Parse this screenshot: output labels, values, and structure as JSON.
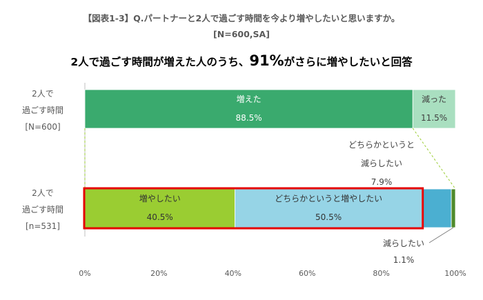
{
  "header": {
    "title": "【図表1-3】Q.パートナーと2人で過ごす時間を今より増やしたいと思いますか。",
    "sample": "[N=600,SA]",
    "headline_pre": "2人で過ごす時間が増えた人のうち、",
    "headline_big": "91%",
    "headline_post": "がさらに増やしたいと回答"
  },
  "chart_data": {
    "type": "bar",
    "orientation": "horizontal-stacked-100",
    "categories": [
      [
        "2人で",
        "過ごす時間",
        "[N=600]"
      ],
      [
        "2人で",
        "過ごす時間",
        "[n=531]"
      ]
    ],
    "bars": [
      {
        "segments": [
          {
            "label": "増えた",
            "value": 88.5,
            "display": "88.5%",
            "color": "#3aaa6e",
            "text_color": "#ffffff"
          },
          {
            "label": "減った",
            "value": 11.5,
            "display": "11.5%",
            "color": "#a9dfc0",
            "text_color": "#404040"
          }
        ]
      },
      {
        "segments": [
          {
            "label": "増やしたい",
            "value": 40.5,
            "display": "40.5%",
            "color": "#9acd32",
            "text_color": "#333333"
          },
          {
            "label": "どちらかというと増やしたい",
            "value": 50.5,
            "display": "50.5%",
            "color": "#96d4e6",
            "text_color": "#333333"
          },
          {
            "label": [
              "どちらかというと",
              "減らしたい"
            ],
            "value": 7.9,
            "display": "7.9%",
            "color": "#4bafd1",
            "text_color": "#404040"
          },
          {
            "label": [
              "減らしたい"
            ],
            "value": 1.1,
            "display": "1.1%",
            "color": "#4f8a2b",
            "text_color": "#404040"
          }
        ]
      }
    ],
    "x_ticks": [
      "0%",
      "20%",
      "40%",
      "60%",
      "80%",
      "100%"
    ],
    "xlim": [
      0,
      100
    ],
    "highlight": "増やしたい + どちらかというと増やしたい"
  }
}
